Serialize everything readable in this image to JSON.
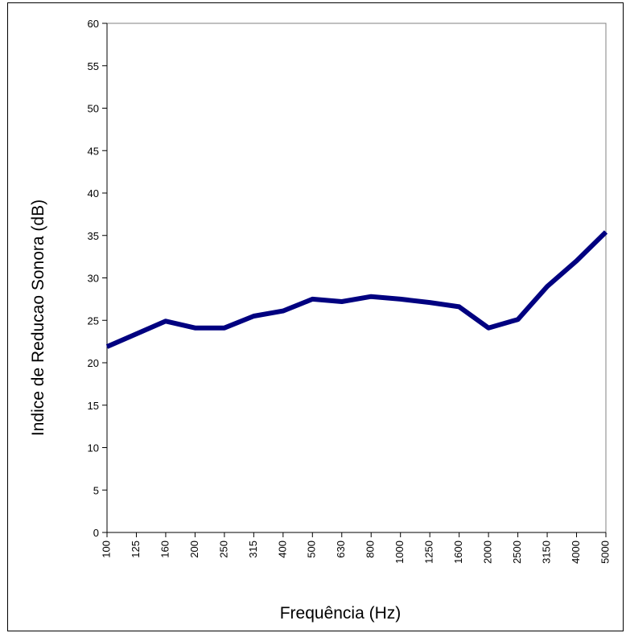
{
  "chart_data": {
    "type": "line",
    "xlabel": "Frequência (Hz)",
    "ylabel": "Indice de Reducao Sonora (dB)",
    "ylim": [
      0,
      60
    ],
    "yticks": [
      "0",
      "5",
      "10",
      "15",
      "20",
      "25",
      "30",
      "35",
      "40",
      "45",
      "50",
      "55",
      "60"
    ],
    "categories": [
      "100",
      "125",
      "160",
      "200",
      "250",
      "315",
      "400",
      "500",
      "630",
      "800",
      "1000",
      "1250",
      "1600",
      "2000",
      "2500",
      "3150",
      "4000",
      "5000"
    ],
    "series": [
      {
        "values": [
          21.9,
          23.4,
          24.9,
          24.1,
          24.1,
          25.5,
          26.1,
          27.5,
          27.2,
          27.8,
          27.5,
          27.1,
          26.6,
          24.1,
          25.1,
          29.0,
          32.0,
          35.4
        ],
        "color": "#000080"
      }
    ],
    "grid": false,
    "legend": "none"
  }
}
